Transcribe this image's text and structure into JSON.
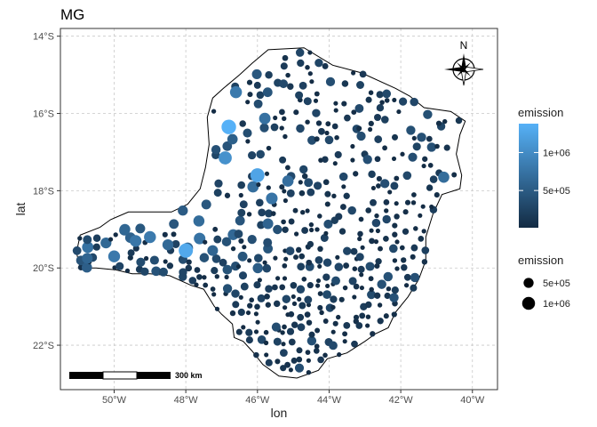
{
  "title": "MG",
  "axes": {
    "x_label": "lon",
    "y_label": "lat",
    "x_ticks": [
      {
        "value": -50,
        "label": "50°W"
      },
      {
        "value": -48,
        "label": "48°W"
      },
      {
        "value": -46,
        "label": "46°W"
      },
      {
        "value": -44,
        "label": "44°W"
      },
      {
        "value": -42,
        "label": "42°W"
      },
      {
        "value": -40,
        "label": "40°W"
      }
    ],
    "y_ticks": [
      {
        "value": -14,
        "label": "14°S"
      },
      {
        "value": -16,
        "label": "16°S"
      },
      {
        "value": -18,
        "label": "18°S"
      },
      {
        "value": -20,
        "label": "20°S"
      },
      {
        "value": -22,
        "label": "22°S"
      }
    ],
    "xlim": [
      -51.5,
      -39.3
    ],
    "ylim": [
      -23.15,
      -13.8
    ]
  },
  "legend_color": {
    "title": "emission",
    "low_color": "#132B43",
    "high_color": "#56B1F7",
    "labels": [
      {
        "value": 500000,
        "label": "5e+05"
      },
      {
        "value": 1000000,
        "label": "1e+06"
      }
    ],
    "range": [
      10000,
      1380000
    ]
  },
  "legend_size": {
    "title": "emission",
    "entries": [
      {
        "value": 500000,
        "label": "5e+05"
      },
      {
        "value": 1000000,
        "label": "1e+06"
      }
    ]
  },
  "scale_bar": {
    "label": "300 km"
  },
  "north_arrow": {
    "label": "N"
  },
  "colors": {
    "panel_border": "#333333",
    "grid": "#c8c8c8",
    "outline": "#000000"
  },
  "chart_data": {
    "type": "scatter",
    "title": "MG",
    "xlabel": "lon",
    "ylabel": "lat",
    "xlim": [
      -51.5,
      -39.3
    ],
    "ylim": [
      -23.15,
      -13.8
    ],
    "grid": true,
    "legend_position": "right",
    "region_outline": [
      [
        -45.7,
        -14.35
      ],
      [
        -44.7,
        -14.3
      ],
      [
        -43.9,
        -14.75
      ],
      [
        -43.1,
        -14.95
      ],
      [
        -42.15,
        -15.35
      ],
      [
        -41.75,
        -15.55
      ],
      [
        -41.35,
        -15.85
      ],
      [
        -40.6,
        -15.95
      ],
      [
        -40.2,
        -16.2
      ],
      [
        -40.35,
        -16.55
      ],
      [
        -40.45,
        -17.05
      ],
      [
        -40.3,
        -17.6
      ],
      [
        -40.35,
        -17.95
      ],
      [
        -40.85,
        -18.1
      ],
      [
        -41.1,
        -18.6
      ],
      [
        -41.3,
        -19.2
      ],
      [
        -41.3,
        -19.8
      ],
      [
        -41.5,
        -20.3
      ],
      [
        -41.8,
        -20.75
      ],
      [
        -42.15,
        -21.15
      ],
      [
        -42.35,
        -21.55
      ],
      [
        -42.7,
        -21.7
      ],
      [
        -43.0,
        -21.9
      ],
      [
        -43.5,
        -22.2
      ],
      [
        -44.05,
        -22.35
      ],
      [
        -44.3,
        -22.65
      ],
      [
        -44.9,
        -22.85
      ],
      [
        -45.4,
        -22.8
      ],
      [
        -45.85,
        -22.5
      ],
      [
        -46.15,
        -22.15
      ],
      [
        -46.4,
        -21.9
      ],
      [
        -46.65,
        -21.8
      ],
      [
        -46.7,
        -21.45
      ],
      [
        -47.0,
        -21.2
      ],
      [
        -47.2,
        -21.0
      ],
      [
        -47.5,
        -20.55
      ],
      [
        -47.85,
        -20.45
      ],
      [
        -48.45,
        -20.2
      ],
      [
        -49.0,
        -20.15
      ],
      [
        -49.5,
        -20.15
      ],
      [
        -49.95,
        -20.05
      ],
      [
        -50.5,
        -20.0
      ],
      [
        -50.95,
        -20.0
      ],
      [
        -51.05,
        -19.6
      ],
      [
        -50.95,
        -19.15
      ],
      [
        -50.4,
        -18.95
      ],
      [
        -50.1,
        -18.75
      ],
      [
        -49.6,
        -18.55
      ],
      [
        -48.95,
        -18.55
      ],
      [
        -48.4,
        -18.55
      ],
      [
        -47.95,
        -18.35
      ],
      [
        -47.6,
        -17.95
      ],
      [
        -47.45,
        -17.4
      ],
      [
        -47.35,
        -16.8
      ],
      [
        -47.4,
        -16.1
      ],
      [
        -47.25,
        -15.6
      ],
      [
        -46.95,
        -15.35
      ],
      [
        -46.5,
        -15.0
      ],
      [
        -46.15,
        -14.7
      ],
      [
        -45.7,
        -14.35
      ]
    ],
    "highlight_points": [
      {
        "lon": -46.8,
        "lat": -16.35,
        "emission": 1380000
      },
      {
        "lon": -48.0,
        "lat": -19.55,
        "emission": 1300000
      },
      {
        "lon": -46.0,
        "lat": -17.6,
        "emission": 1250000
      },
      {
        "lon": -46.9,
        "lat": -17.15,
        "emission": 1050000
      },
      {
        "lon": -46.6,
        "lat": -15.45,
        "emission": 820000
      },
      {
        "lon": -49.0,
        "lat": -19.2,
        "emission": 820000
      },
      {
        "lon": -50.0,
        "lat": -19.7,
        "emission": 800000
      },
      {
        "lon": -49.4,
        "lat": -19.3,
        "emission": 780000
      },
      {
        "lon": -45.6,
        "lat": -18.2,
        "emission": 760000
      },
      {
        "lon": -45.15,
        "lat": -17.75,
        "emission": 700000
      },
      {
        "lon": -40.8,
        "lat": -17.65,
        "emission": 680000
      },
      {
        "lon": -50.75,
        "lat": -19.75,
        "emission": 600000
      },
      {
        "lon": -48.5,
        "lat": -19.4,
        "emission": 640000
      },
      {
        "lon": -49.7,
        "lat": -19.0,
        "emission": 620000
      },
      {
        "lon": -47.25,
        "lat": -19.55,
        "emission": 600000
      }
    ]
  }
}
